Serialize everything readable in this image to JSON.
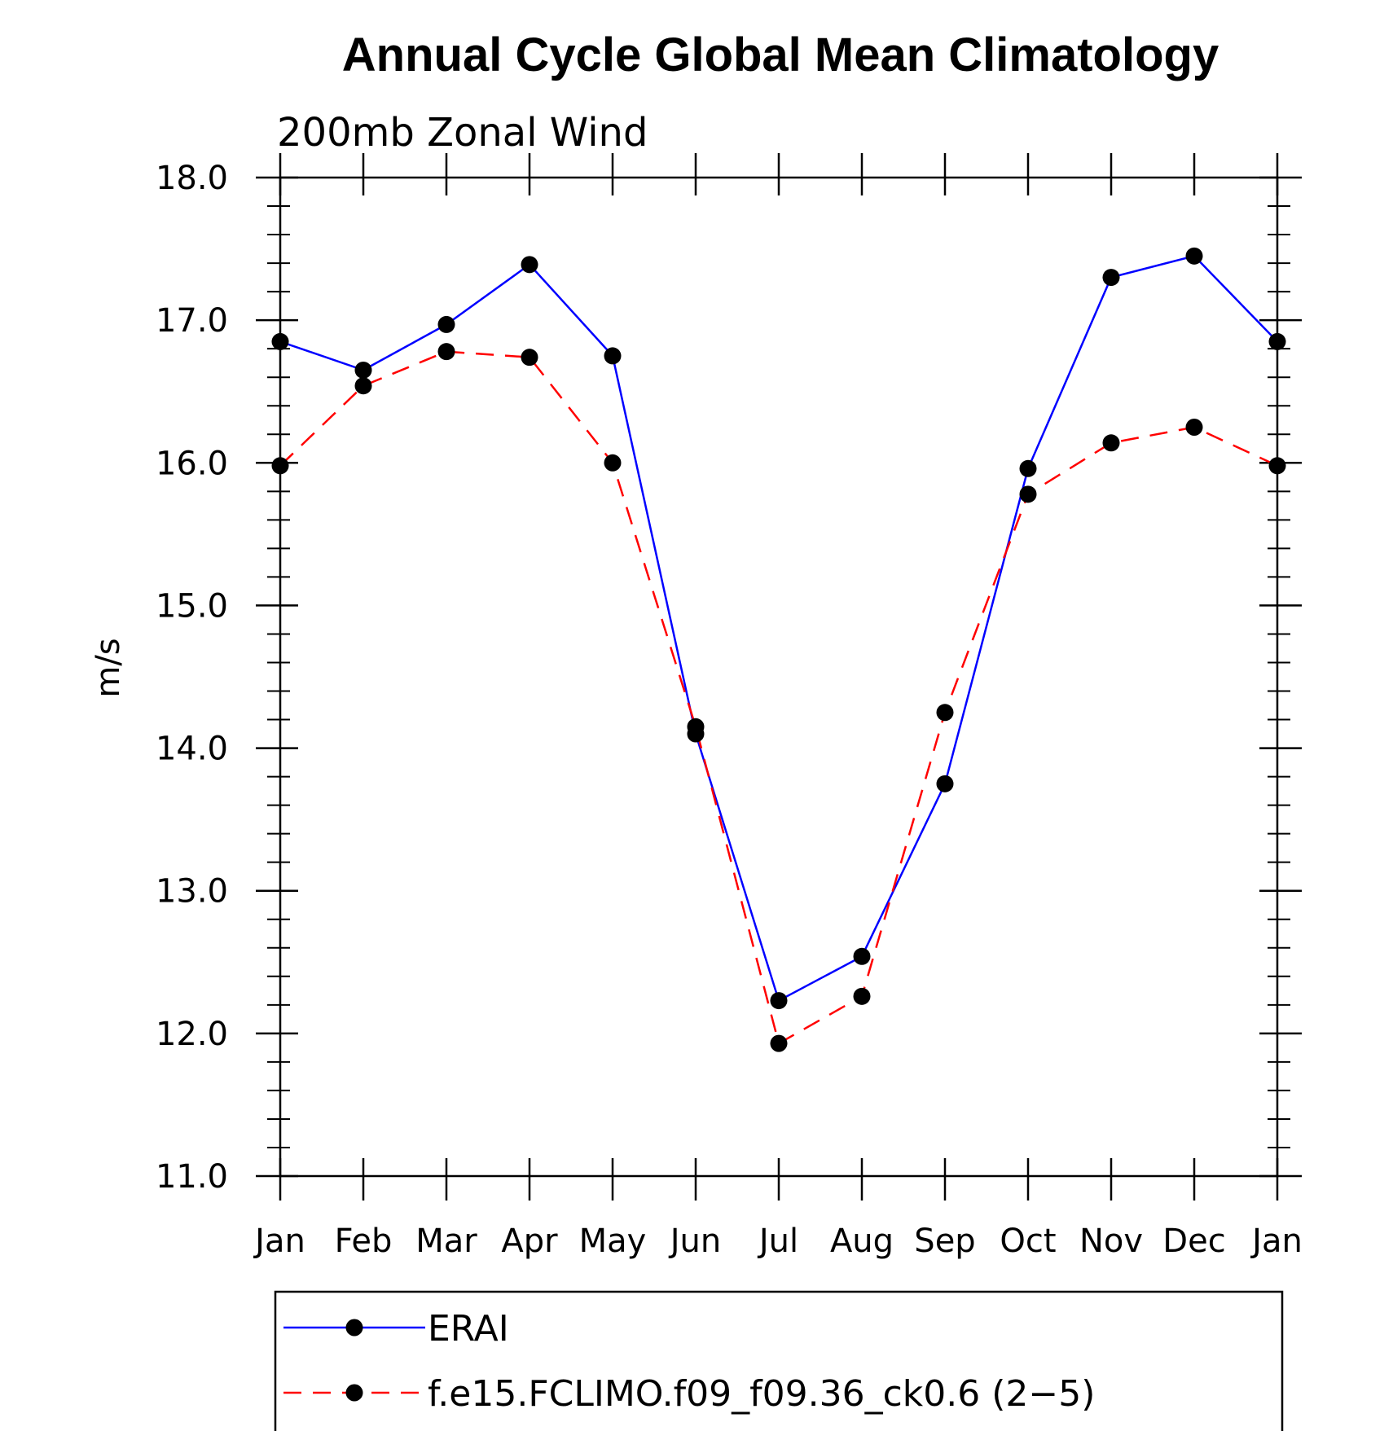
{
  "chart_data": {
    "type": "line",
    "title": "Annual Cycle Global Mean Climatology",
    "subtitle": "200mb Zonal Wind",
    "xlabel": "",
    "ylabel": "m/s",
    "ylim": [
      11.0,
      18.0
    ],
    "yticks": [
      "11.0",
      "12.0",
      "13.0",
      "14.0",
      "15.0",
      "16.0",
      "17.0",
      "18.0"
    ],
    "categories": [
      "Jan",
      "Feb",
      "Mar",
      "Apr",
      "May",
      "Jun",
      "Jul",
      "Aug",
      "Sep",
      "Oct",
      "Nov",
      "Dec",
      "Jan"
    ],
    "series": [
      {
        "name": "ERAI",
        "color": "#0000ff",
        "dash": "solid",
        "values": [
          16.85,
          16.65,
          16.97,
          17.39,
          16.75,
          14.1,
          12.23,
          12.54,
          13.75,
          15.96,
          17.3,
          17.45,
          16.85
        ]
      },
      {
        "name": "f.e15.FCLIMO.f09_f09.36_ck0.6 (2−5)",
        "color": "#ff0000",
        "dash": "dashed",
        "values": [
          15.98,
          16.54,
          16.78,
          16.74,
          16.0,
          14.15,
          11.93,
          12.26,
          14.25,
          15.78,
          16.14,
          16.25,
          15.98
        ]
      }
    ],
    "grid": false,
    "legend_position": "bottom"
  }
}
